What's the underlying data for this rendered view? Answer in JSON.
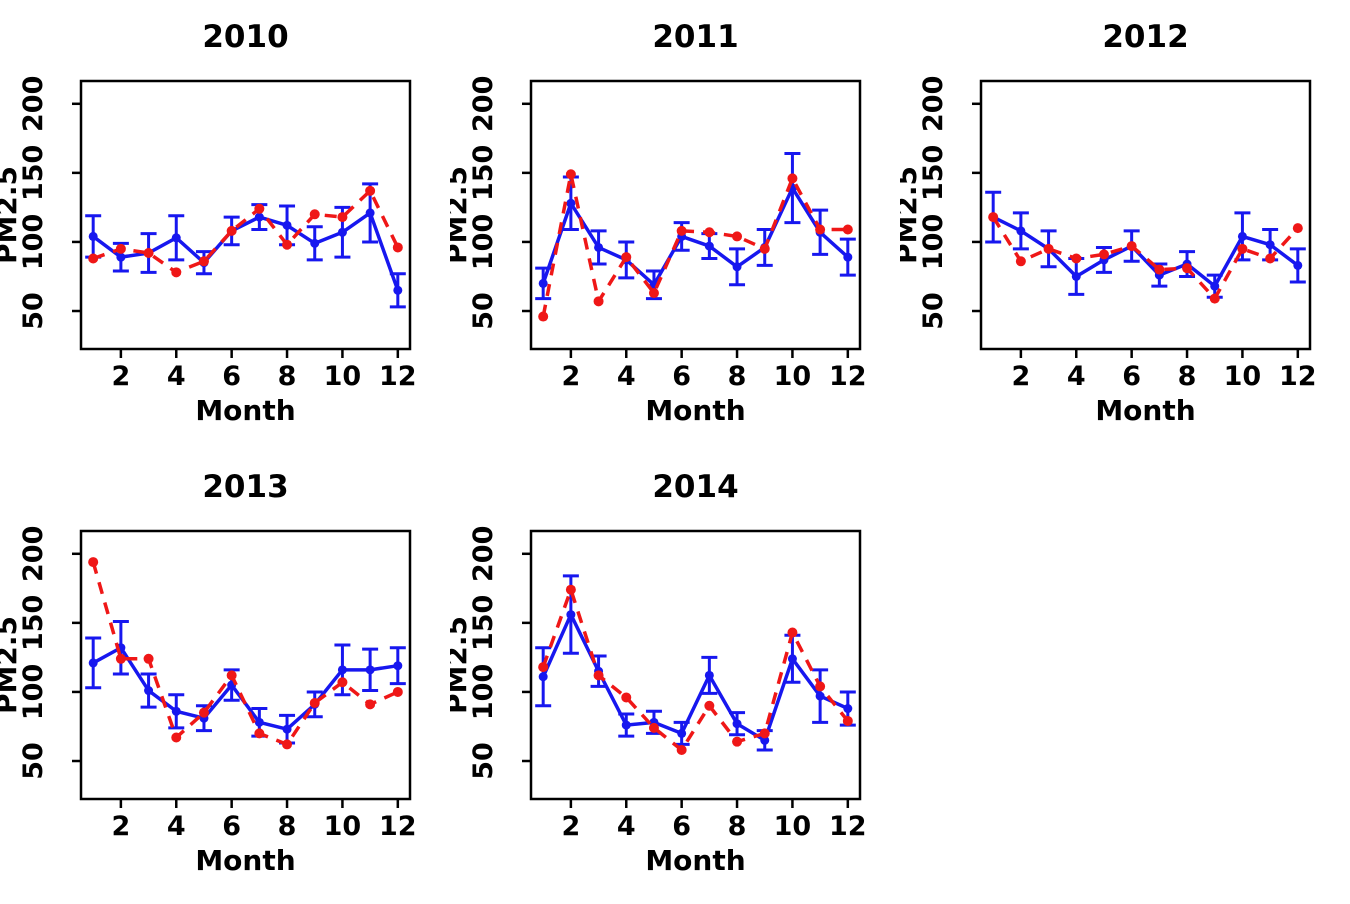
{
  "figure": {
    "background": "#ffffff",
    "layout": "3x2 small multiples, last cell empty"
  },
  "colors": {
    "series_blue": "#1717ef",
    "series_red": "#ef1717",
    "axis": "#000000"
  },
  "chart_data": [
    {
      "type": "line",
      "title": "2010",
      "xlabel": "Month",
      "ylabel": "PM2.5",
      "x": [
        1,
        2,
        3,
        4,
        5,
        6,
        7,
        8,
        9,
        10,
        11,
        12
      ],
      "xticks": [
        2,
        4,
        6,
        8,
        10,
        12
      ],
      "yticks": [
        50,
        100,
        150,
        200
      ],
      "xlim": [
        0.56,
        12.44
      ],
      "ylim": [
        22.5,
        216.5
      ],
      "grid": false,
      "legend": null,
      "series": [
        {
          "name": "blue-solid-errorbar-series",
          "style": "solid",
          "color_key": "series_blue",
          "values": [
            104,
            89,
            92,
            103,
            85,
            108,
            118,
            112,
            99,
            107,
            121,
            65
          ],
          "error": [
            15,
            10,
            14,
            16,
            8,
            10,
            9,
            14,
            12,
            18,
            21,
            12
          ]
        },
        {
          "name": "red-dashed-series",
          "style": "dashed",
          "color_key": "series_red",
          "values": [
            88,
            95,
            92,
            78,
            86,
            108,
            124,
            98,
            120,
            118,
            137,
            96
          ]
        }
      ]
    },
    {
      "type": "line",
      "title": "2011",
      "xlabel": "Month",
      "ylabel": "PM2.5",
      "x": [
        1,
        2,
        3,
        4,
        5,
        6,
        7,
        8,
        9,
        10,
        11,
        12
      ],
      "xticks": [
        2,
        4,
        6,
        8,
        10,
        12
      ],
      "yticks": [
        50,
        100,
        150,
        200
      ],
      "xlim": [
        0.56,
        12.44
      ],
      "ylim": [
        22.5,
        216.5
      ],
      "grid": false,
      "legend": null,
      "series": [
        {
          "name": "blue-solid-errorbar-series",
          "style": "solid",
          "color_key": "series_blue",
          "values": [
            70,
            128,
            96,
            87,
            69,
            104,
            97,
            82,
            96,
            139,
            107,
            89
          ],
          "error": [
            11,
            19,
            12,
            13,
            10,
            10,
            9,
            13,
            13,
            25,
            16,
            13
          ]
        },
        {
          "name": "red-dashed-series",
          "style": "dashed",
          "color_key": "series_red",
          "values": [
            46,
            149,
            57,
            89,
            63,
            108,
            107,
            104,
            95,
            146,
            109,
            109
          ]
        }
      ]
    },
    {
      "type": "line",
      "title": "2012",
      "xlabel": "Month",
      "ylabel": "PM2.5",
      "x": [
        1,
        2,
        3,
        4,
        5,
        6,
        7,
        8,
        9,
        10,
        11,
        12
      ],
      "xticks": [
        2,
        4,
        6,
        8,
        10,
        12
      ],
      "yticks": [
        50,
        100,
        150,
        200
      ],
      "xlim": [
        0.56,
        12.44
      ],
      "ylim": [
        22.5,
        216.5
      ],
      "grid": false,
      "legend": null,
      "series": [
        {
          "name": "blue-solid-errorbar-series",
          "style": "solid",
          "color_key": "series_blue",
          "values": [
            118,
            108,
            95,
            75,
            87,
            97,
            76,
            84,
            68,
            104,
            98,
            83
          ],
          "error": [
            18,
            13,
            13,
            13,
            9,
            11,
            8,
            9,
            8,
            17,
            11,
            12
          ]
        },
        {
          "name": "red-dashed-series",
          "style": "dashed",
          "color_key": "series_red",
          "values": [
            118,
            86,
            95,
            88,
            91,
            97,
            80,
            81,
            59,
            95,
            88,
            110
          ]
        }
      ]
    },
    {
      "type": "line",
      "title": "2013",
      "xlabel": "Month",
      "ylabel": "PM2.5",
      "x": [
        1,
        2,
        3,
        4,
        5,
        6,
        7,
        8,
        9,
        10,
        11,
        12
      ],
      "xticks": [
        2,
        4,
        6,
        8,
        10,
        12
      ],
      "yticks": [
        50,
        100,
        150,
        200
      ],
      "xlim": [
        0.56,
        12.44
      ],
      "ylim": [
        22.5,
        216.5
      ],
      "grid": false,
      "legend": null,
      "series": [
        {
          "name": "blue-solid-errorbar-series",
          "style": "solid",
          "color_key": "series_blue",
          "values": [
            121,
            132,
            101,
            86,
            81,
            105,
            78,
            73,
            91,
            116,
            116,
            119
          ],
          "error": [
            18,
            19,
            12,
            12,
            9,
            11,
            10,
            10,
            9,
            18,
            15,
            13
          ]
        },
        {
          "name": "red-dashed-series",
          "style": "dashed",
          "color_key": "series_red",
          "values": [
            194,
            124,
            124,
            67,
            85,
            112,
            70,
            62,
            92,
            107,
            91,
            100
          ]
        }
      ]
    },
    {
      "type": "line",
      "title": "2014",
      "xlabel": "Month",
      "ylabel": "PM2.5",
      "x": [
        1,
        2,
        3,
        4,
        5,
        6,
        7,
        8,
        9,
        10,
        11,
        12
      ],
      "xticks": [
        2,
        4,
        6,
        8,
        10,
        12
      ],
      "yticks": [
        50,
        100,
        150,
        200
      ],
      "xlim": [
        0.56,
        12.44
      ],
      "ylim": [
        22.5,
        216.5
      ],
      "grid": false,
      "legend": null,
      "series": [
        {
          "name": "blue-solid-errorbar-series",
          "style": "solid",
          "color_key": "series_blue",
          "values": [
            111,
            156,
            115,
            76,
            78,
            70,
            112,
            77,
            65,
            124,
            97,
            88
          ],
          "error": [
            21,
            28,
            11,
            8,
            8,
            8,
            13,
            8,
            7,
            17,
            19,
            12
          ]
        },
        {
          "name": "red-dashed-series",
          "style": "dashed",
          "color_key": "series_red",
          "values": [
            118,
            174,
            112,
            96,
            74,
            58,
            90,
            64,
            70,
            143,
            104,
            79
          ]
        }
      ]
    }
  ]
}
